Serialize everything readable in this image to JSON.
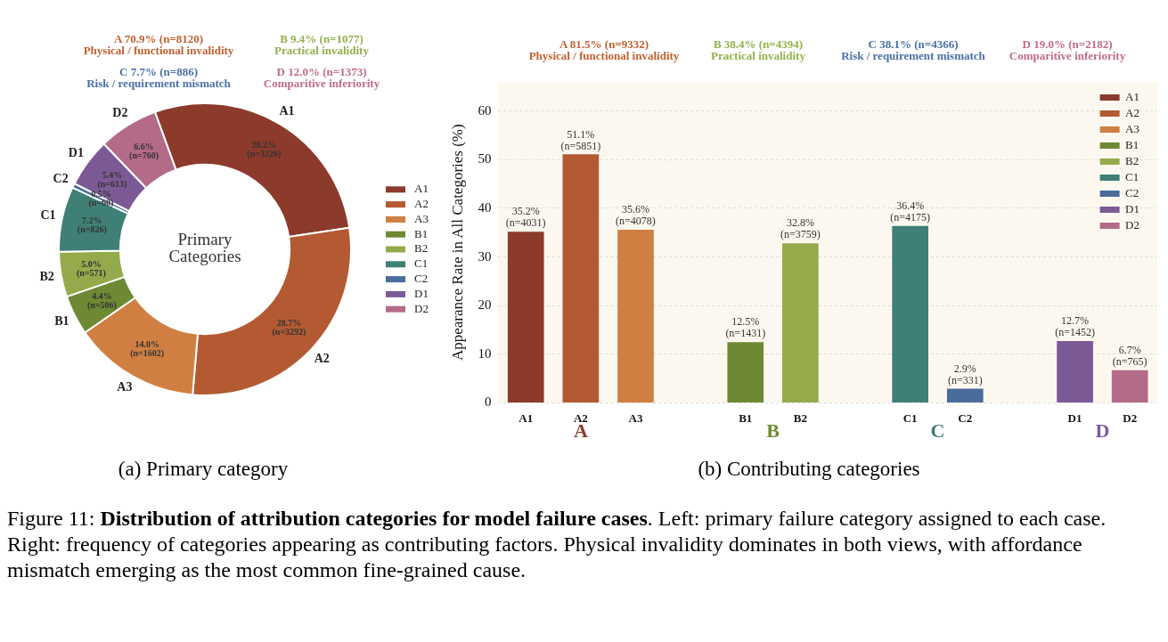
{
  "chart_data": [
    {
      "type": "donut",
      "categories": [
        "A1",
        "A2",
        "A3",
        "B1",
        "B2",
        "C1",
        "C2",
        "D1",
        "D2"
      ],
      "values": [
        28.2,
        28.7,
        14.0,
        4.4,
        5.0,
        7.2,
        0.5,
        5.4,
        6.6
      ],
      "colors": [
        "#8b3a2b",
        "#b35a32",
        "#d07f42",
        "#6e8933",
        "#94aa4b",
        "#3f7f76",
        "#4a6c9b",
        "#7b5a96",
        "#b46a89"
      ],
      "value_labels": [
        "28.2%\n(n=3226)",
        "28.7%\n(n=3292)",
        "14.0%\n(n=1602)",
        "4.4%\n(n=506)",
        "5.0%\n(n=571)",
        "7.2%\n(n=826)",
        "0.5%\n(n=60)",
        "5.4%\n(n=613)",
        "6.6%\n(n=760)"
      ],
      "legend": "right",
      "annotations": [
        "A 70.9% (n=8120)\nPhysical / functional invalidity",
        "B 9.4% (n=1077)\nPractical invalidity",
        "C 7.7% (n=886)\nRisk / requirement mismatch",
        "D 12.0% (n=1373)\nComparitive inferiority",
        "Primary\nCategories",
        "(a) Primary category"
      ]
    },
    {
      "type": "bar",
      "categories": [
        "A1",
        "A2",
        "A3",
        null,
        "B1",
        "B2",
        null,
        "C1",
        "C2",
        null,
        "D1",
        "D2"
      ],
      "series": [
        {
          "name": "A1",
          "color": "#8b3a2b",
          "values": [
            35.2,
            null,
            null,
            null,
            null,
            null,
            null,
            null,
            null,
            null,
            null,
            null
          ],
          "value_labels": [
            "35.2%\n(n=4031)",
            null,
            null,
            null,
            null,
            null,
            null,
            null,
            null,
            null,
            null,
            null
          ]
        },
        {
          "name": "A2",
          "color": "#b35a32",
          "values": [
            null,
            51.1,
            null,
            null,
            null,
            null,
            null,
            null,
            null,
            null,
            null,
            null
          ],
          "value_labels": [
            null,
            "51.1%\n(n=5851)",
            null,
            null,
            null,
            null,
            null,
            null,
            null,
            null,
            null,
            null
          ]
        },
        {
          "name": "A3",
          "color": "#d07f42",
          "values": [
            null,
            null,
            35.6,
            null,
            null,
            null,
            null,
            null,
            null,
            null,
            null,
            null
          ],
          "value_labels": [
            null,
            null,
            "35.6%\n(n=4078)",
            null,
            null,
            null,
            null,
            null,
            null,
            null,
            null,
            null
          ]
        },
        {
          "name": "B1",
          "color": "#6e8933",
          "values": [
            null,
            null,
            null,
            null,
            12.5,
            null,
            null,
            null,
            null,
            null,
            null,
            null
          ],
          "value_labels": [
            null,
            null,
            null,
            null,
            "12.5%\n(n=1431)",
            null,
            null,
            null,
            null,
            null,
            null,
            null
          ]
        },
        {
          "name": "B2",
          "color": "#94aa4b",
          "values": [
            null,
            null,
            null,
            null,
            null,
            32.8,
            null,
            null,
            null,
            null,
            null,
            null
          ],
          "value_labels": [
            null,
            null,
            null,
            null,
            null,
            "32.8%\n(n=3759)",
            null,
            null,
            null,
            null,
            null,
            null
          ]
        },
        {
          "name": "C1",
          "color": "#3f7f76",
          "values": [
            null,
            null,
            null,
            null,
            null,
            null,
            null,
            36.4,
            null,
            null,
            null,
            null
          ],
          "value_labels": [
            null,
            null,
            null,
            null,
            null,
            null,
            null,
            "36.4%\n(n=4175)",
            null,
            null,
            null,
            null
          ]
        },
        {
          "name": "C2",
          "color": "#4a6c9b",
          "values": [
            null,
            null,
            null,
            null,
            null,
            null,
            null,
            null,
            2.9,
            null,
            null,
            null
          ],
          "value_labels": [
            null,
            null,
            null,
            null,
            null,
            null,
            null,
            null,
            "2.9%\n(n=331)",
            null,
            null,
            null
          ]
        },
        {
          "name": "D1",
          "color": "#7b5a96",
          "values": [
            null,
            null,
            null,
            null,
            null,
            null,
            null,
            null,
            null,
            null,
            12.7,
            null
          ],
          "value_labels": [
            null,
            null,
            null,
            null,
            null,
            null,
            null,
            null,
            null,
            null,
            "12.7%\n(n=1452)",
            null
          ]
        },
        {
          "name": "D2",
          "color": "#b46a89",
          "values": [
            null,
            null,
            null,
            null,
            null,
            null,
            null,
            null,
            null,
            null,
            null,
            6.7
          ],
          "value_labels": [
            null,
            null,
            null,
            null,
            null,
            null,
            null,
            null,
            null,
            null,
            null,
            "6.7%\n(n=765)"
          ]
        }
      ],
      "ylabel": "Appearance Rate in All Categories (%)",
      "ylim": [
        0,
        66
      ],
      "yticks": [
        0,
        10,
        20,
        30,
        40,
        50,
        60
      ],
      "grid": "y",
      "legend": "top right",
      "annotations": [
        "A 81.5% (n=9332)\nPhysical / functional invalidity",
        "B 38.4% (n=4394)\nPractical invalidity",
        "C 38.1% (n=4366)\nRisk / requirement mismatch",
        "D 19.0% (n=2182)\nComparitive inferiority",
        "A",
        "B",
        "C",
        "D",
        "(b) Contributing categories"
      ]
    },
    {
      "type": "other",
      "annotations": [
        "Figure 11:",
        "Distribution of attribution categories for model failure cases",
        ". Left: primary failure category assigned to each case. Right: frequency of categories appearing as contributing factors. Physical invalidity dominates in both views, with affordance mismatch emerging as the most common fine-grained cause."
      ]
    }
  ]
}
